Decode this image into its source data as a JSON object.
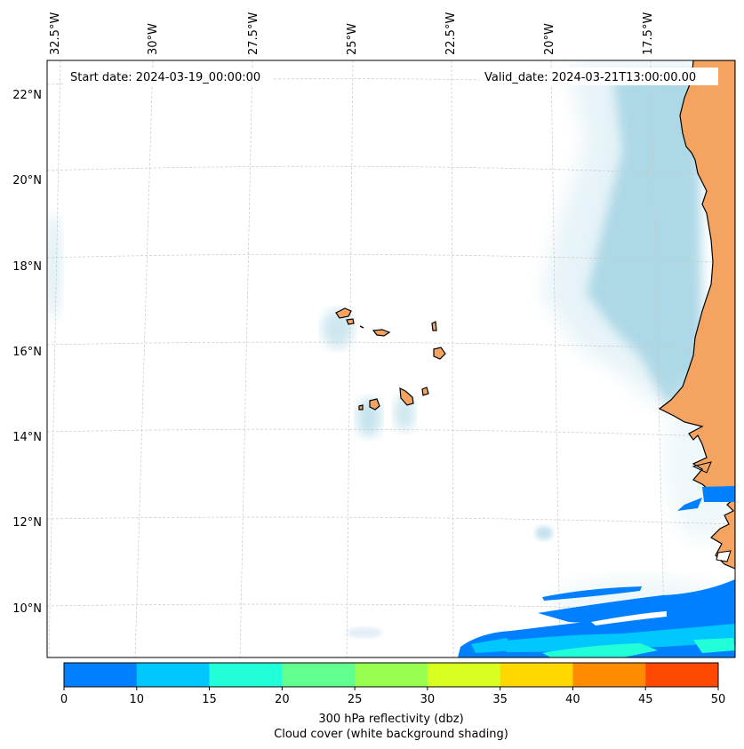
{
  "header": {
    "start_date": "Start date: 2024-03-19_00:00:00",
    "valid_date": "Valid_date: 2024-03-21T13:00:00.00"
  },
  "axes": {
    "lon_labels": [
      "32.5°W",
      "30°W",
      "27.5°W",
      "25°W",
      "22.5°W",
      "20°W",
      "17.5°W"
    ],
    "lat_labels": [
      "22°N",
      "20°N",
      "18°N",
      "16°N",
      "14°N",
      "12°N",
      "10°N"
    ]
  },
  "colorbar": {
    "ticks": [
      "0",
      "10",
      "15",
      "20",
      "25",
      "30",
      "35",
      "40",
      "45",
      "50"
    ],
    "colors": [
      "#0080ff",
      "#00c8ff",
      "#20ffd8",
      "#60ff90",
      "#98ff50",
      "#d8ff20",
      "#ffd800",
      "#ff8c00",
      "#ff4800"
    ],
    "label_line1": "300 hPa reflectivity (dbz)",
    "label_line2": "Cloud cover (white background shading)"
  },
  "colors": {
    "land": "#f4a460",
    "cloud": "#add8e6",
    "grid": "#c8c8c8"
  }
}
